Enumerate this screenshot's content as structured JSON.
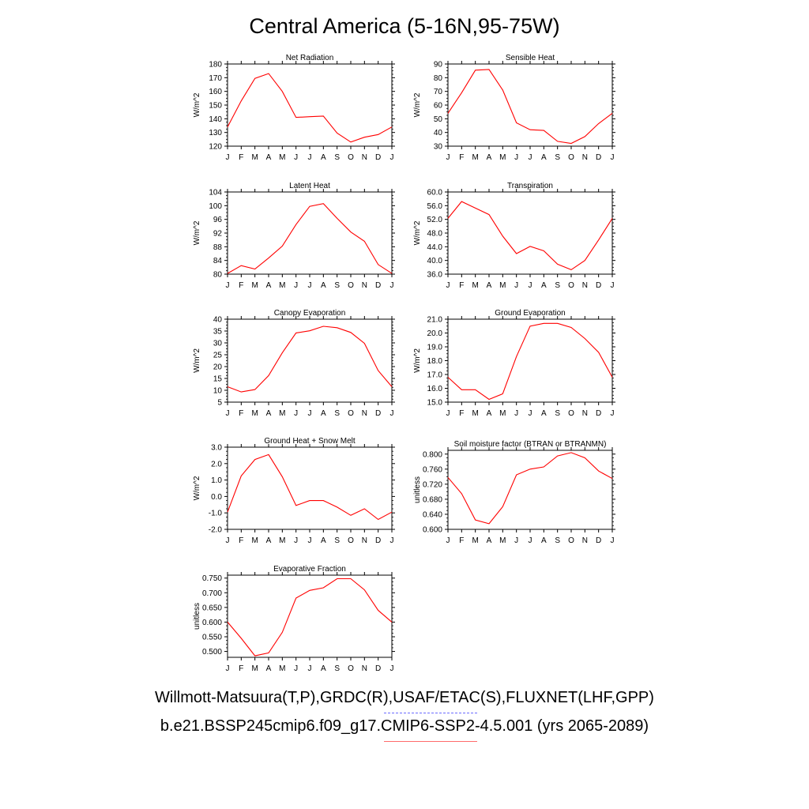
{
  "figure": {
    "title": "Central America (5-16N,95-75W)",
    "footer_line1": "Willmott-Matsuura(T,P),GRDC(R),USAF/ETAC(S),FLUXNET(LHF,GPP)",
    "footer_line2": "b.e21.BSSP245cmip6.f09_g17.CMIP6-SSP2-4.5.001 (yrs 2065-2089)",
    "line_color": "#ff0000",
    "legend_colors": [
      "#6b6bff",
      "#ff6b6b"
    ]
  },
  "chart_data": [
    {
      "type": "line",
      "title": "Net Radiation",
      "ylabel": "W/m^2",
      "categories": [
        "J",
        "F",
        "M",
        "A",
        "M",
        "J",
        "J",
        "A",
        "S",
        "O",
        "N",
        "D",
        "J"
      ],
      "ylim": [
        120,
        180
      ],
      "yticks": [
        "120",
        "130",
        "140",
        "150",
        "160",
        "170",
        "180"
      ],
      "values": [
        134,
        153,
        169.5,
        173,
        160,
        141,
        141.5,
        142,
        129.5,
        123,
        126.5,
        128.5,
        134
      ]
    },
    {
      "type": "line",
      "title": "Sensible Heat",
      "ylabel": "W/m^2",
      "categories": [
        "J",
        "F",
        "M",
        "A",
        "M",
        "J",
        "J",
        "A",
        "S",
        "O",
        "N",
        "D",
        "J"
      ],
      "ylim": [
        30,
        90
      ],
      "yticks": [
        "30",
        "40",
        "50",
        "60",
        "70",
        "80",
        "90"
      ],
      "values": [
        54,
        69,
        85.5,
        86,
        71,
        47,
        42,
        41.5,
        33.5,
        32,
        37,
        46.5,
        54
      ]
    },
    {
      "type": "line",
      "title": "Latent Heat",
      "ylabel": "W/m^2",
      "categories": [
        "J",
        "F",
        "M",
        "A",
        "M",
        "J",
        "J",
        "A",
        "S",
        "O",
        "N",
        "D",
        "J"
      ],
      "ylim": [
        80,
        104
      ],
      "yticks": [
        "80",
        "84",
        "88",
        "92",
        "96",
        "100",
        "104"
      ],
      "values": [
        80.2,
        82.5,
        81.5,
        84.7,
        88.2,
        94.5,
        99.8,
        100.6,
        96.3,
        92.3,
        89.6,
        82.8,
        80.2
      ]
    },
    {
      "type": "line",
      "title": "Transpiration",
      "ylabel": "W/m^2",
      "categories": [
        "J",
        "F",
        "M",
        "A",
        "M",
        "J",
        "J",
        "A",
        "S",
        "O",
        "N",
        "D",
        "J"
      ],
      "ylim": [
        36,
        60
      ],
      "yticks": [
        "36.0",
        "40.0",
        "44.0",
        "48.0",
        "52.0",
        "56.0",
        "60.0"
      ],
      "values": [
        52.3,
        57.2,
        55.3,
        53.4,
        47.1,
        42.0,
        44.1,
        42.8,
        38.9,
        37.3,
        40.0,
        46.0,
        52.3
      ]
    },
    {
      "type": "line",
      "title": "Canopy Evaporation",
      "ylabel": "W/m^2",
      "categories": [
        "J",
        "F",
        "M",
        "A",
        "M",
        "J",
        "J",
        "A",
        "S",
        "O",
        "N",
        "D",
        "J"
      ],
      "ylim": [
        5,
        40
      ],
      "yticks": [
        "5",
        "10",
        "15",
        "20",
        "25",
        "30",
        "35",
        "40"
      ],
      "values": [
        11.5,
        9.3,
        10.3,
        16.2,
        25.8,
        34.2,
        35.1,
        37,
        36.4,
        34.4,
        29.8,
        18.3,
        11.5
      ]
    },
    {
      "type": "line",
      "title": "Ground Evaporation",
      "ylabel": "W/m^2",
      "categories": [
        "J",
        "F",
        "M",
        "A",
        "M",
        "J",
        "J",
        "A",
        "S",
        "O",
        "N",
        "D",
        "J"
      ],
      "ylim": [
        15,
        21
      ],
      "yticks": [
        "15.0",
        "16.0",
        "17.0",
        "18.0",
        "19.0",
        "20.0",
        "21.0"
      ],
      "values": [
        16.8,
        15.9,
        15.9,
        15.2,
        15.6,
        18.3,
        20.5,
        20.7,
        20.7,
        20.4,
        19.6,
        18.6,
        16.8
      ]
    },
    {
      "type": "line",
      "title": "Ground Heat + Snow Melt",
      "ylabel": "W/m^2",
      "categories": [
        "J",
        "F",
        "M",
        "A",
        "M",
        "J",
        "J",
        "A",
        "S",
        "O",
        "N",
        "D",
        "J"
      ],
      "ylim": [
        -2,
        3
      ],
      "yticks": [
        "-2.0",
        "-1.0",
        "0.0",
        "1.0",
        "2.0",
        "3.0"
      ],
      "values": [
        -0.95,
        1.25,
        2.25,
        2.55,
        1.2,
        -0.55,
        -0.25,
        -0.25,
        -0.65,
        -1.15,
        -0.75,
        -1.4,
        -0.95
      ]
    },
    {
      "type": "line",
      "title": "Soil moisture factor (BTRAN or BTRANMN)",
      "ylabel": "unitless",
      "categories": [
        "J",
        "F",
        "M",
        "A",
        "M",
        "J",
        "J",
        "A",
        "S",
        "O",
        "N",
        "D",
        "J"
      ],
      "ylim": [
        0.6,
        0.81
      ],
      "yticks": [
        "0.600",
        "0.640",
        "0.680",
        "0.720",
        "0.760",
        "0.800"
      ],
      "values": [
        0.738,
        0.695,
        0.625,
        0.615,
        0.66,
        0.745,
        0.76,
        0.766,
        0.795,
        0.804,
        0.79,
        0.755,
        0.735
      ]
    },
    {
      "type": "line",
      "title": "Evaporative Fraction",
      "ylabel": "unitless",
      "categories": [
        "J",
        "F",
        "M",
        "A",
        "M",
        "J",
        "J",
        "A",
        "S",
        "O",
        "N",
        "D",
        "J"
      ],
      "ylim": [
        0.48,
        0.76
      ],
      "yticks": [
        "0.500",
        "0.550",
        "0.600",
        "0.650",
        "0.700",
        "0.750"
      ],
      "values": [
        0.6,
        0.545,
        0.485,
        0.495,
        0.565,
        0.682,
        0.708,
        0.717,
        0.748,
        0.748,
        0.71,
        0.64,
        0.6
      ]
    }
  ]
}
